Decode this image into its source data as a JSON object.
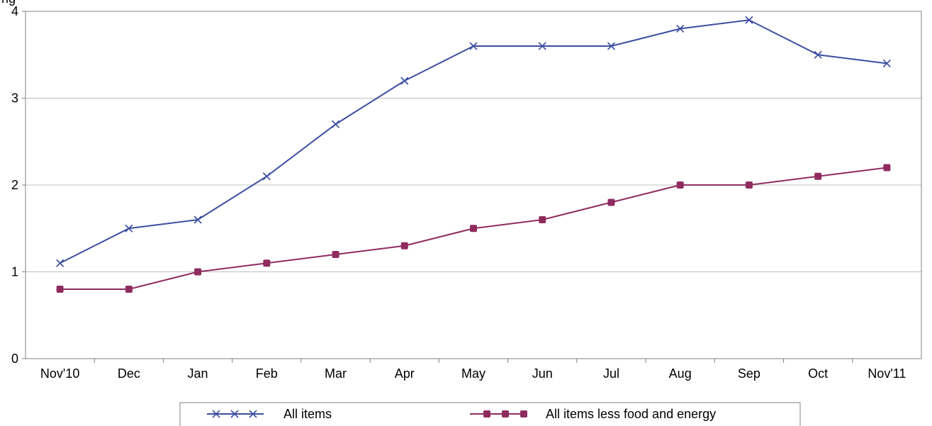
{
  "chart_data": {
    "type": "line",
    "title_partial": "ng",
    "categories": [
      "Nov'10",
      "Dec",
      "Jan",
      "Feb",
      "Mar",
      "Apr",
      "May",
      "Jun",
      "Jul",
      "Aug",
      "Sep",
      "Oct",
      "Nov'11"
    ],
    "yticks": [
      "0",
      "1",
      "2",
      "3",
      "4"
    ],
    "ylim": [
      0,
      4
    ],
    "grid": true,
    "legend_position": "bottom",
    "series": [
      {
        "name": "All items",
        "color": "#3d4fa0",
        "marker": "x",
        "values": [
          1.1,
          1.5,
          1.6,
          2.1,
          2.7,
          3.2,
          3.6,
          3.6,
          3.6,
          3.8,
          3.9,
          3.5,
          3.4
        ]
      },
      {
        "name": "All items less food and energy",
        "color": "#8f2c5f",
        "marker": "square",
        "values": [
          0.8,
          0.8,
          1.0,
          1.1,
          1.2,
          1.3,
          1.5,
          1.6,
          1.8,
          2.0,
          2.0,
          2.1,
          2.2
        ]
      }
    ]
  }
}
